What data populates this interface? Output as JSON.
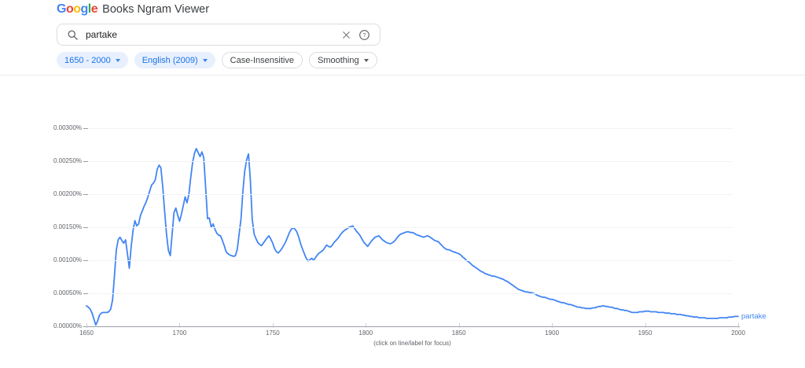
{
  "header": {
    "logo_text": "Google",
    "logo_letters": [
      {
        "ch": "G",
        "color": "#4285F4"
      },
      {
        "ch": "o",
        "color": "#EA4335"
      },
      {
        "ch": "o",
        "color": "#FBBC05"
      },
      {
        "ch": "g",
        "color": "#4285F4"
      },
      {
        "ch": "l",
        "color": "#34A853"
      },
      {
        "ch": "e",
        "color": "#EA4335"
      }
    ],
    "title": "Books Ngram Viewer"
  },
  "search": {
    "query": "partake",
    "help_glyph": "?",
    "icons": [
      "search-icon",
      "x-clear-icon",
      "question-circle-icon"
    ]
  },
  "chips": [
    {
      "name": "chip-year-range",
      "label": "1650 - 2000",
      "style": "filled",
      "caret": true
    },
    {
      "name": "chip-corpus",
      "label": "English (2009)",
      "style": "filled",
      "caret": true
    },
    {
      "name": "chip-case-insensitive",
      "label": "Case-Insensitive",
      "style": "outline",
      "caret": false
    },
    {
      "name": "chip-smoothing",
      "label": "Smoothing",
      "style": "outline",
      "caret": true
    }
  ],
  "colors": {
    "series_blue": "#4285f4",
    "chip_blue_bg": "#e8f0fe",
    "chip_blue_text": "#1a73e8",
    "axis_gray": "#9aa0a6",
    "label_gray": "#5f6368"
  },
  "chart_data": {
    "type": "line",
    "title": "",
    "caption": "(click on line/label for focus)",
    "xlabel": "",
    "ylabel": "",
    "xlim": [
      1650,
      2000
    ],
    "ylim_percent": [
      0,
      0.003
    ],
    "x_start": 1650,
    "x_step": 1,
    "grid": true,
    "legend_position": "end-of-line",
    "xticks": [
      "1650",
      "1700",
      "1750",
      "1800",
      "1850",
      "1900",
      "1950",
      "2000"
    ],
    "yticks": [
      "0.00000%",
      "0.00050%",
      "0.00100%",
      "0.00150%",
      "0.00200%",
      "0.00250%",
      "0.00300%"
    ],
    "series": [
      {
        "name": "partake",
        "color": "#4285f4",
        "unit": "1e-5 percent",
        "values_e5": [
          31,
          29,
          26,
          20,
          11,
          2,
          8,
          17,
          20,
          21,
          21,
          21,
          22,
          26,
          40,
          75,
          115,
          131,
          135,
          130,
          126,
          131,
          110,
          88,
          120,
          145,
          160,
          152,
          155,
          168,
          175,
          182,
          188,
          196,
          205,
          214,
          217,
          222,
          238,
          244,
          240,
          210,
          173,
          140,
          115,
          107,
          140,
          172,
          179,
          168,
          159,
          170,
          183,
          196,
          187,
          200,
          225,
          248,
          262,
          269,
          263,
          257,
          264,
          255,
          210,
          163,
          164,
          150,
          155,
          147,
          141,
          138,
          137,
          130,
          122,
          113,
          110,
          108,
          107,
          106,
          107,
          117,
          140,
          163,
          205,
          235,
          252,
          261,
          223,
          163,
          140,
          133,
          127,
          124,
          122,
          126,
          130,
          134,
          137,
          132,
          126,
          118,
          113,
          111,
          114,
          118,
          123,
          128,
          135,
          142,
          147,
          149,
          147,
          143,
          135,
          125,
          117,
          110,
          103,
          99,
          101,
          103,
          100,
          104,
          108,
          111,
          113,
          115,
          119,
          123,
          121,
          120,
          123,
          127,
          130,
          133,
          137,
          141,
          144,
          146,
          148,
          150,
          151,
          152,
          148,
          144,
          141,
          137,
          132,
          127,
          124,
          121,
          125,
          129,
          132,
          135,
          136,
          137,
          134,
          131,
          129,
          127,
          126,
          125,
          126,
          128,
          131,
          135,
          138,
          140,
          141,
          142,
          143,
          143,
          142,
          142,
          141,
          139,
          138,
          137,
          136,
          135,
          136,
          137,
          136,
          134,
          132,
          130,
          129,
          128,
          125,
          122,
          119,
          117,
          116,
          116,
          114,
          113,
          112,
          111,
          110,
          108,
          105,
          103,
          100,
          98,
          96,
          93,
          91,
          89,
          87,
          85,
          83,
          82,
          80,
          79,
          78,
          77,
          76,
          76,
          75,
          74,
          73,
          72,
          71,
          69,
          68,
          66,
          64,
          62,
          60,
          58,
          56,
          55,
          54,
          53,
          52,
          52,
          51,
          51,
          50,
          49,
          47,
          46,
          45,
          44,
          44,
          43,
          42,
          41,
          41,
          40,
          39,
          38,
          37,
          36,
          36,
          35,
          34,
          33,
          33,
          32,
          31,
          30,
          29,
          29,
          28,
          28,
          27,
          27,
          27,
          27,
          28,
          28,
          29,
          30,
          30,
          31,
          31,
          30,
          30,
          29,
          29,
          28,
          27,
          27,
          26,
          25,
          25,
          24,
          24,
          23,
          22,
          21,
          21,
          21,
          21,
          22,
          22,
          22,
          23,
          23,
          23,
          22,
          22,
          22,
          22,
          21,
          21,
          21,
          21,
          20,
          20,
          20,
          19,
          19,
          19,
          18,
          18,
          18,
          17,
          17,
          16,
          16,
          15,
          15,
          14,
          14,
          14,
          13,
          13,
          13,
          13,
          12,
          12,
          12,
          12,
          12,
          12,
          12,
          13,
          13,
          13,
          13,
          13,
          14,
          14,
          14,
          15,
          15,
          15
        ]
      }
    ]
  }
}
